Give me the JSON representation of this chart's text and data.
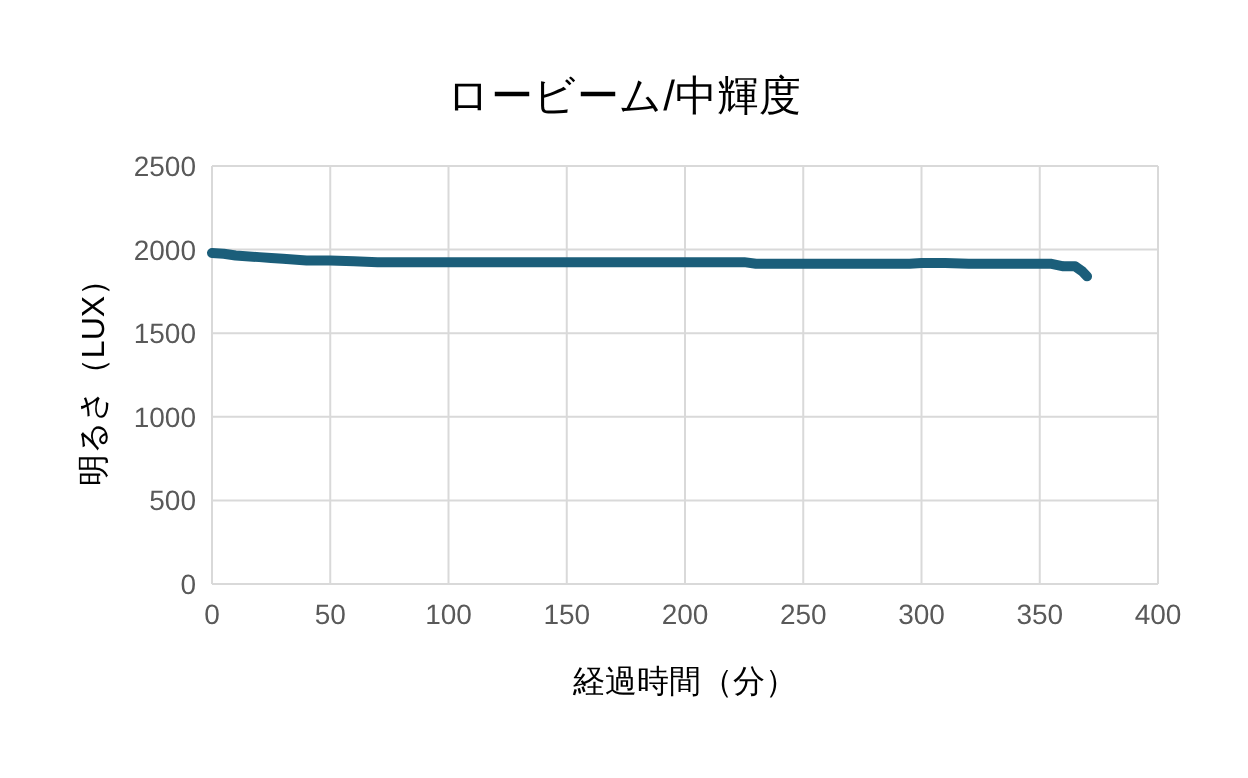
{
  "chart_data": {
    "type": "line",
    "title": "ロービーム/中輝度",
    "xlabel": "経過時間（分）",
    "ylabel": "明るさ（LUX）",
    "xlim": [
      0,
      400
    ],
    "xticks": [
      0,
      50,
      100,
      150,
      200,
      250,
      300,
      350,
      400
    ],
    "ylim": [
      0,
      2500
    ],
    "yticks": [
      0,
      500,
      1000,
      1500,
      2000,
      2500
    ],
    "grid": true,
    "series": [
      {
        "color": "#1b5e7a",
        "x": [
          0,
          5,
          10,
          20,
          25,
          30,
          40,
          50,
          60,
          70,
          100,
          150,
          200,
          225,
          230,
          250,
          280,
          295,
          300,
          305,
          310,
          320,
          340,
          355,
          360,
          365,
          368,
          370
        ],
        "values": [
          1980,
          1975,
          1965,
          1955,
          1950,
          1945,
          1935,
          1935,
          1930,
          1925,
          1925,
          1925,
          1925,
          1925,
          1915,
          1915,
          1915,
          1915,
          1920,
          1920,
          1920,
          1915,
          1915,
          1915,
          1900,
          1900,
          1870,
          1840
        ]
      }
    ]
  }
}
